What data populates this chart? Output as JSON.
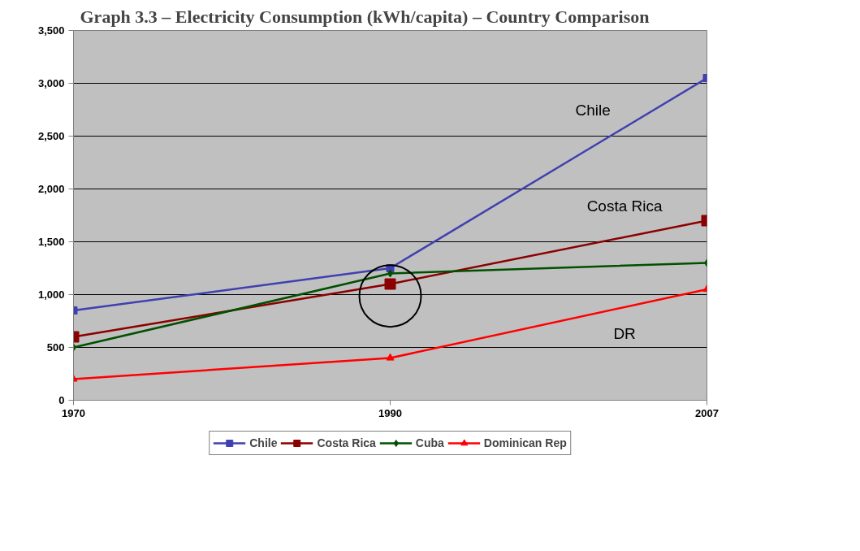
{
  "chart_data": {
    "type": "line",
    "title": "Graph 3.3 – Electricity Consumption (kWh/capita) – Country Comparison",
    "categories": [
      "1970",
      "1990",
      "2007"
    ],
    "series": [
      {
        "name": "Chile",
        "color": "#4040b0",
        "marker": "square",
        "values": [
          850,
          1250,
          3050
        ]
      },
      {
        "name": "Costa Rica",
        "color": "#8b0000",
        "marker": "square",
        "values": [
          600,
          1100,
          1700
        ]
      },
      {
        "name": "Cuba",
        "color": "#005000",
        "marker": "diamond",
        "values": [
          500,
          1200,
          1300
        ]
      },
      {
        "name": "Dominican Rep",
        "color": "#ff0000",
        "marker": "triangle",
        "values": [
          200,
          400,
          1050
        ]
      }
    ],
    "annotations": [
      "Chile",
      "Costa Rica",
      "DR"
    ],
    "ylim": [
      0,
      3500
    ],
    "yticks": [
      0,
      500,
      {
        "value": 1000,
        "label": "1,000"
      },
      {
        "value": 1500,
        "label": "1,500"
      },
      {
        "value": 2000,
        "label": "2,000"
      },
      {
        "value": 2500,
        "label": "2,500"
      },
      {
        "value": 3000,
        "label": "3,000"
      },
      {
        "value": 3500,
        "label": "3,500"
      }
    ],
    "grid": "y",
    "legend": "bottom",
    "line_style": "solid"
  }
}
